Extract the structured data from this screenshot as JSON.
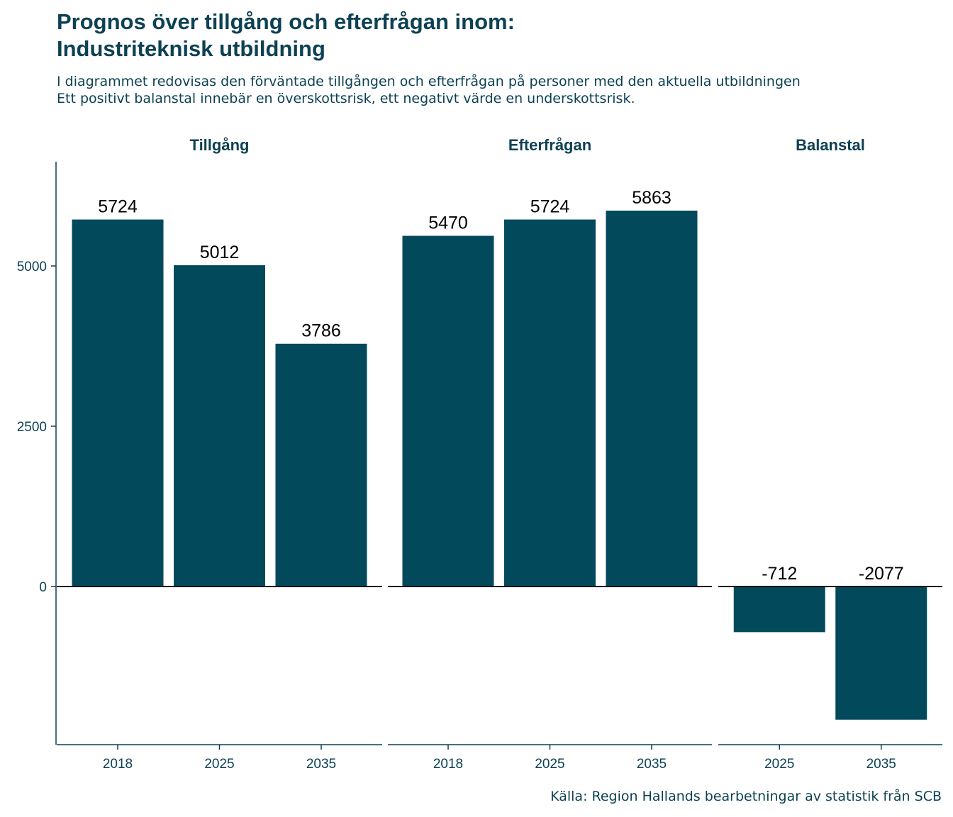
{
  "title_line1": "Prognos över tillgång och efterfrågan inom:",
  "title_line2": "Industriteknisk utbildning",
  "subtitle_line1": "I diagrammet redovisas den förväntade tillgången och efterfrågan på personer med den aktuella utbildningen",
  "subtitle_line2": "Ett positivt balanstal innebär en överskottsrisk, ett negativt värde en underskottsrisk.",
  "caption": "Källa: Region Hallands bearbetningar av statistik från SCB",
  "colors": {
    "bar": "#03495c",
    "text": "#0d4154",
    "axis": "#0d4154"
  },
  "chart_data": {
    "type": "bar",
    "y_ticks": [
      0,
      2500,
      5000
    ],
    "ylim": [
      -2480,
      6480
    ],
    "facets": [
      {
        "name": "Tillgång",
        "categories": [
          "2018",
          "2025",
          "2035"
        ],
        "values": [
          5724,
          5012,
          3786
        ]
      },
      {
        "name": "Efterfrågan",
        "categories": [
          "2018",
          "2025",
          "2035"
        ],
        "values": [
          5470,
          5724,
          5863
        ]
      },
      {
        "name": "Balanstal",
        "categories": [
          "2025",
          "2035"
        ],
        "values": [
          -712,
          -2077
        ]
      }
    ]
  }
}
